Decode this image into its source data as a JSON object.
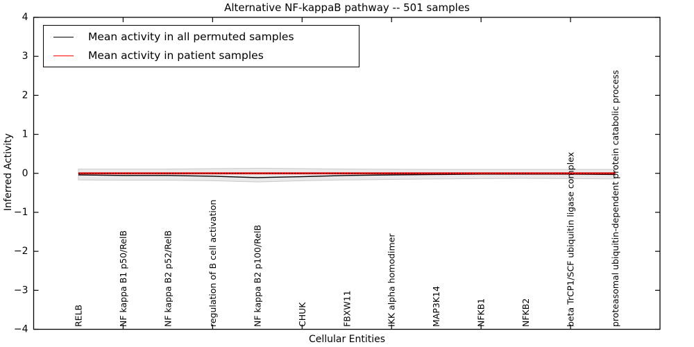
{
  "figure": {
    "title": "Alternative NF-kappaB pathway -- 501 samples",
    "xlabel": "Cellular Entities",
    "ylabel": "Inferred Activity"
  },
  "legend": {
    "items": [
      {
        "label": "Mean activity in all permuted samples",
        "color": "#000000",
        "style": "solid"
      },
      {
        "label": "Mean activity in patient samples",
        "color": "#ff0000",
        "style": "solid"
      }
    ]
  },
  "chart_data": {
    "type": "line",
    "title": "Alternative NF-kappaB pathway -- 501 samples",
    "xlabel": "Cellular Entities",
    "ylabel": "Inferred Activity",
    "xlim": [
      0,
      14
    ],
    "ylim": [
      -4,
      4
    ],
    "yticks": [
      4,
      3,
      2,
      1,
      0,
      -1,
      -2,
      -3,
      -4
    ],
    "x": [
      1,
      2,
      3,
      4,
      5,
      6,
      7,
      8,
      9,
      10,
      11,
      12,
      13
    ],
    "categories": [
      "RELB",
      "NF kappa B1 p50/RelB",
      "NF kappa B2 p52/RelB",
      "regulation of B cell activation",
      "NF kappa B2 p100/RelB",
      "CHUK",
      "FBXW11",
      "IKK alpha homodimer",
      "MAP3K14",
      "NFKB1",
      "NFKB2",
      "beta TrCP1/SCF ubiquitin ligase complex",
      "proteasomal ubiquitin-dependent protein catabolic process"
    ],
    "top_axis_tick_positions": [
      2,
      4,
      6,
      8,
      10,
      12
    ],
    "grid": false,
    "legend_position": "upper left",
    "band": {
      "name": "permuted samples activity range",
      "fill": "#e9e9e9",
      "edge": "#c9c9c9",
      "upper": [
        0.11,
        0.11,
        0.11,
        0.12,
        0.13,
        0.12,
        0.11,
        0.105,
        0.1,
        0.1,
        0.1,
        0.1,
        0.1
      ],
      "lower": [
        -0.17,
        -0.175,
        -0.175,
        -0.19,
        -0.22,
        -0.19,
        -0.17,
        -0.155,
        -0.145,
        -0.135,
        -0.13,
        -0.135,
        -0.145
      ]
    },
    "series": [
      {
        "name": "Mean activity in all permuted samples",
        "color": "#000000",
        "style": "solid",
        "width": 1.4,
        "values": [
          -0.04,
          -0.055,
          -0.055,
          -0.075,
          -0.11,
          -0.085,
          -0.055,
          -0.04,
          -0.03,
          -0.02,
          -0.02,
          -0.02,
          -0.03
        ]
      },
      {
        "name": "Mean activity in patient samples",
        "color": "#ff0000",
        "style": "solid",
        "width": 2.8,
        "values": [
          0,
          0,
          0,
          0,
          0,
          0,
          0,
          0,
          0,
          0,
          0,
          0,
          0
        ]
      },
      {
        "name": "zero reference line",
        "color": "#000000",
        "style": "dotted",
        "width": 1.4,
        "values": [
          0,
          0,
          0,
          0,
          0,
          0,
          0,
          0,
          0,
          0,
          0,
          0,
          0
        ]
      }
    ]
  }
}
